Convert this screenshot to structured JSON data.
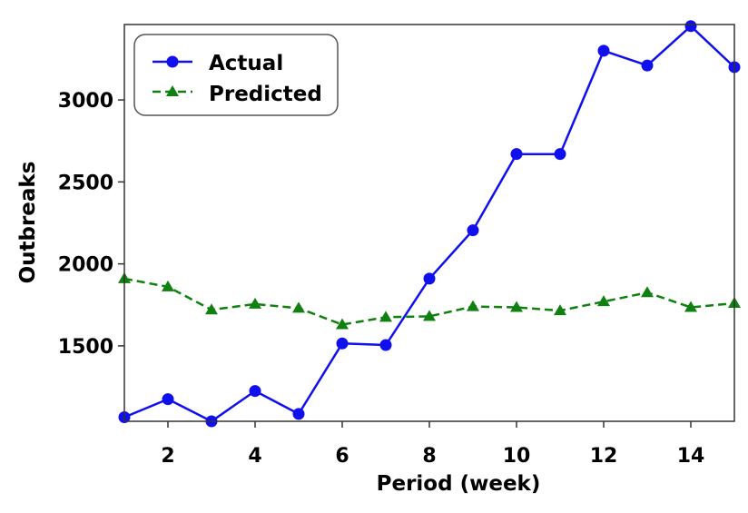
{
  "chart_data": {
    "type": "line",
    "xlabel": "Period  (week)",
    "ylabel": "Outbreaks",
    "xlim": [
      1,
      15
    ],
    "ylim": [
      1040,
      3460
    ],
    "xticks": [
      2,
      4,
      6,
      8,
      10,
      12,
      14
    ],
    "yticks": [
      1500,
      2000,
      2500,
      3000
    ],
    "grid": false,
    "legend": "top-left",
    "x": [
      1,
      2,
      3,
      4,
      5,
      6,
      7,
      8,
      9,
      10,
      11,
      12,
      13,
      14,
      15
    ],
    "series": [
      {
        "name": "Actual",
        "color": "#1010ee",
        "marker": "circle",
        "linestyle": "solid",
        "values": [
          1065,
          1175,
          1040,
          1225,
          1085,
          1515,
          1505,
          1910,
          2205,
          2670,
          2670,
          3300,
          3210,
          3450,
          3200
        ]
      },
      {
        "name": "Predicted",
        "color": "#108010",
        "marker": "triangle",
        "linestyle": "dashed",
        "values": [
          1910,
          1860,
          1720,
          1755,
          1730,
          1630,
          1675,
          1680,
          1740,
          1735,
          1715,
          1770,
          1825,
          1735,
          1760
        ]
      }
    ]
  }
}
